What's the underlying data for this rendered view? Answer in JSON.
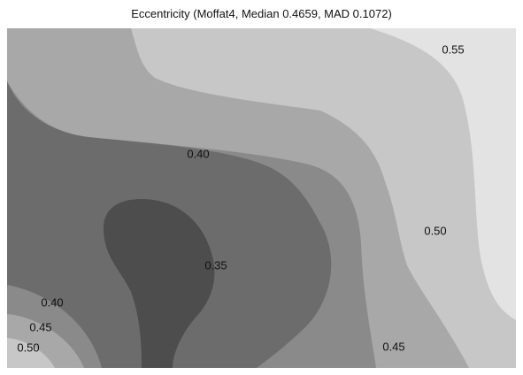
{
  "chart_data": {
    "type": "contour",
    "title": "Eccentricity (Moffat4, Median 0.4659, MAD 0.1072)",
    "xlabel": "",
    "ylabel": "",
    "grid": false,
    "legend": "none",
    "levels": [
      0.35,
      0.4,
      0.45,
      0.5,
      0.55
    ],
    "band_colors": {
      "below_0.35": "#4d4d4d",
      "0.35_0.40": "#6c6c6c",
      "0.40_0.45": "#8a8a8a",
      "0.45_0.50": "#a8a8a8",
      "0.50_0.55": "#c7c7c7",
      "above_0.55": "#e3e3e3"
    },
    "contour_labels": [
      {
        "text": "0.55",
        "level": 0.55
      },
      {
        "text": "0.40",
        "level": 0.4
      },
      {
        "text": "0.50",
        "level": 0.5
      },
      {
        "text": "0.35",
        "level": 0.35
      },
      {
        "text": "0.40",
        "level": 0.4
      },
      {
        "text": "0.45",
        "level": 0.45
      },
      {
        "text": "0.45",
        "level": 0.45
      },
      {
        "text": "0.50",
        "level": 0.5
      }
    ]
  }
}
